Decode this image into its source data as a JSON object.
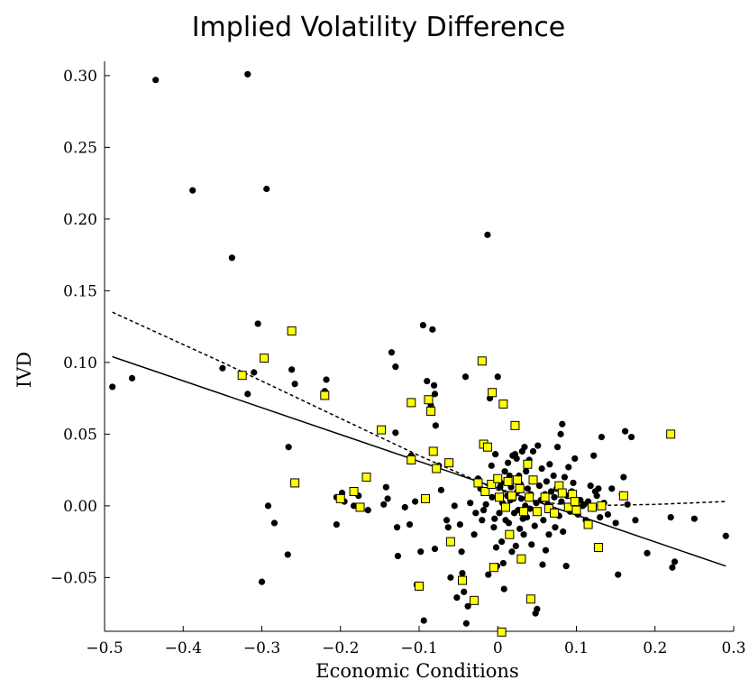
{
  "chart_data": {
    "type": "scatter",
    "title": "Implied Volatility Difference",
    "xlabel": "Economic Conditions",
    "ylabel": "IVD",
    "xlim": [
      -0.5,
      0.3
    ],
    "ylim": [
      -0.0875,
      0.31
    ],
    "x_ticks": [
      -0.5,
      -0.4,
      -0.3,
      -0.2,
      -0.1,
      0,
      0.1,
      0.2,
      0.3
    ],
    "x_tick_labels": [
      "−0.5",
      "−0.4",
      "−0.3",
      "−0.2",
      "−0.1",
      "0",
      "0.1",
      "0.2",
      "0.3"
    ],
    "y_ticks": [
      -0.05,
      0,
      0.05,
      0.1,
      0.15,
      0.2,
      0.25,
      0.3
    ],
    "y_tick_labels": [
      "−0.05",
      "0.00",
      "0.05",
      "0.10",
      "0.15",
      "0.20",
      "0.25",
      "0.30"
    ],
    "grid": false,
    "series": [
      {
        "marker": "circle",
        "color": "#000000",
        "points": [
          [
            -0.49,
            0.083
          ],
          [
            -0.465,
            0.089
          ],
          [
            -0.435,
            0.297
          ],
          [
            -0.388,
            0.22
          ],
          [
            -0.35,
            0.096
          ],
          [
            -0.338,
            0.173
          ],
          [
            -0.318,
            0.301
          ],
          [
            -0.318,
            0.078
          ],
          [
            -0.31,
            0.093
          ],
          [
            -0.305,
            0.127
          ],
          [
            -0.3,
            -0.053
          ],
          [
            -0.294,
            0.221
          ],
          [
            -0.292,
            0.0
          ],
          [
            -0.284,
            -0.012
          ],
          [
            -0.267,
            -0.034
          ],
          [
            -0.266,
            0.041
          ],
          [
            -0.262,
            0.095
          ],
          [
            -0.258,
            0.085
          ],
          [
            -0.218,
            0.088
          ],
          [
            -0.22,
            0.08
          ],
          [
            -0.205,
            -0.013
          ],
          [
            -0.205,
            0.006
          ],
          [
            -0.198,
            0.009
          ],
          [
            -0.195,
            0.003
          ],
          [
            -0.183,
            0.0
          ],
          [
            -0.177,
            0.007
          ],
          [
            -0.165,
            -0.003
          ],
          [
            -0.145,
            0.001
          ],
          [
            -0.142,
            0.013
          ],
          [
            -0.14,
            0.005
          ],
          [
            -0.135,
            0.107
          ],
          [
            -0.13,
            0.097
          ],
          [
            -0.13,
            0.051
          ],
          [
            -0.128,
            -0.015
          ],
          [
            -0.127,
            -0.035
          ],
          [
            -0.118,
            -0.001
          ],
          [
            -0.112,
            -0.013
          ],
          [
            -0.11,
            0.035
          ],
          [
            -0.105,
            0.003
          ],
          [
            -0.103,
            -0.055
          ],
          [
            -0.098,
            -0.032
          ],
          [
            -0.095,
            0.126
          ],
          [
            -0.094,
            -0.08
          ],
          [
            -0.09,
            0.087
          ],
          [
            -0.085,
            0.07
          ],
          [
            -0.083,
            0.123
          ],
          [
            -0.081,
            0.084
          ],
          [
            -0.08,
            0.078
          ],
          [
            -0.079,
            0.056
          ],
          [
            -0.08,
            -0.03
          ],
          [
            -0.075,
            0.028
          ],
          [
            -0.072,
            0.011
          ],
          [
            -0.065,
            -0.01
          ],
          [
            -0.063,
            -0.015
          ],
          [
            -0.06,
            -0.05
          ],
          [
            -0.055,
            0.0
          ],
          [
            -0.052,
            -0.064
          ],
          [
            -0.048,
            -0.013
          ],
          [
            -0.046,
            -0.032
          ],
          [
            -0.045,
            -0.047
          ],
          [
            -0.043,
            -0.06
          ],
          [
            -0.041,
            0.09
          ],
          [
            -0.04,
            -0.082
          ],
          [
            -0.038,
            -0.07
          ],
          [
            -0.035,
            0.002
          ],
          [
            -0.03,
            -0.02
          ],
          [
            -0.028,
            -0.005
          ],
          [
            -0.025,
            0.019
          ],
          [
            -0.022,
            0.012
          ],
          [
            -0.02,
            -0.01
          ],
          [
            -0.018,
            -0.003
          ],
          [
            -0.016,
            0.043
          ],
          [
            -0.015,
            0.001
          ],
          [
            -0.013,
            0.189
          ],
          [
            -0.012,
            -0.048
          ],
          [
            -0.01,
            0.075
          ],
          [
            -0.008,
            0.028
          ],
          [
            -0.007,
            0.006
          ],
          [
            -0.005,
            -0.015
          ],
          [
            -0.004,
            -0.009
          ],
          [
            -0.003,
            0.036
          ],
          [
            -0.002,
            -0.029
          ],
          [
            -0.001,
            -0.042
          ],
          [
            0.0,
            0.09
          ],
          [
            0.001,
            0.019
          ],
          [
            0.002,
            -0.005
          ],
          [
            0.003,
            0.013
          ],
          [
            0.004,
            0.016
          ],
          [
            0.005,
            -0.025
          ],
          [
            0.006,
            0.002
          ],
          [
            0.007,
            -0.04
          ],
          [
            0.008,
            -0.058
          ],
          [
            0.009,
            0.024
          ],
          [
            0.01,
            -0.01
          ],
          [
            0.012,
            0.007
          ],
          [
            0.013,
            0.03
          ],
          [
            0.014,
            -0.012
          ],
          [
            0.015,
            0.021
          ],
          [
            0.016,
            0.004
          ],
          [
            0.017,
            0.013
          ],
          [
            0.018,
            -0.032
          ],
          [
            0.019,
            0.035
          ],
          [
            0.02,
            0.005
          ],
          [
            0.021,
            -0.005
          ],
          [
            0.022,
            0.036
          ],
          [
            0.023,
            -0.028
          ],
          [
            0.024,
            0.033
          ],
          [
            0.025,
            0.01
          ],
          [
            0.026,
            -0.003
          ],
          [
            0.027,
            0.021
          ],
          [
            0.028,
            -0.016
          ],
          [
            0.029,
            0.015
          ],
          [
            0.03,
            0.005
          ],
          [
            0.031,
            0.038
          ],
          [
            0.032,
            -0.009
          ],
          [
            0.033,
            -0.02
          ],
          [
            0.034,
            0.041
          ],
          [
            0.035,
            0.0
          ],
          [
            0.036,
            0.024
          ],
          [
            0.037,
            -0.008
          ],
          [
            0.038,
            0.012
          ],
          [
            0.04,
            0.032
          ],
          [
            0.041,
            -0.002
          ],
          [
            0.042,
            0.008
          ],
          [
            0.043,
            -0.027
          ],
          [
            0.045,
            0.038
          ],
          [
            0.046,
            0.018
          ],
          [
            0.047,
            -0.014
          ],
          [
            0.048,
            -0.075
          ],
          [
            0.049,
            0.002
          ],
          [
            0.05,
            -0.072
          ],
          [
            0.051,
            0.042
          ],
          [
            0.053,
            0.014
          ],
          [
            0.055,
            0.004
          ],
          [
            0.056,
            0.026
          ],
          [
            0.057,
            -0.041
          ],
          [
            0.058,
            -0.01
          ],
          [
            0.06,
            0.008
          ],
          [
            0.061,
            -0.031
          ],
          [
            0.062,
            0.017
          ],
          [
            0.064,
            0.001
          ],
          [
            0.065,
            -0.02
          ],
          [
            0.066,
            0.029
          ],
          [
            0.068,
            0.01
          ],
          [
            0.07,
            -0.004
          ],
          [
            0.071,
            0.021
          ],
          [
            0.072,
            0.006
          ],
          [
            0.073,
            -0.015
          ],
          [
            0.075,
            0.012
          ],
          [
            0.076,
            0.041
          ],
          [
            0.078,
            -0.007
          ],
          [
            0.08,
            0.05
          ],
          [
            0.081,
            0.003
          ],
          [
            0.082,
            0.057
          ],
          [
            0.083,
            -0.018
          ],
          [
            0.085,
            0.02
          ],
          [
            0.087,
            -0.042
          ],
          [
            0.088,
            0.007
          ],
          [
            0.09,
            0.027
          ],
          [
            0.092,
            -0.004
          ],
          [
            0.094,
            0.01
          ],
          [
            0.096,
            0.016
          ],
          [
            0.098,
            0.033
          ],
          [
            0.1,
            0.002
          ],
          [
            0.102,
            -0.006
          ],
          [
            0.105,
            0.004
          ],
          [
            0.108,
            0.0
          ],
          [
            0.11,
            0.001
          ],
          [
            0.112,
            -0.01
          ],
          [
            0.115,
            0.003
          ],
          [
            0.118,
            0.014
          ],
          [
            0.12,
            -0.002
          ],
          [
            0.122,
            0.035
          ],
          [
            0.124,
            0.01
          ],
          [
            0.126,
            0.007
          ],
          [
            0.128,
            0.012
          ],
          [
            0.13,
            -0.008
          ],
          [
            0.132,
            0.048
          ],
          [
            0.135,
            0.002
          ],
          [
            0.14,
            -0.006
          ],
          [
            0.145,
            0.012
          ],
          [
            0.15,
            -0.012
          ],
          [
            0.153,
            -0.048
          ],
          [
            0.158,
            0.008
          ],
          [
            0.16,
            0.02
          ],
          [
            0.162,
            0.052
          ],
          [
            0.165,
            0.001
          ],
          [
            0.17,
            0.048
          ],
          [
            0.175,
            -0.01
          ],
          [
            0.19,
            -0.033
          ],
          [
            0.22,
            -0.008
          ],
          [
            0.222,
            -0.043
          ],
          [
            0.225,
            -0.039
          ],
          [
            0.25,
            -0.009
          ],
          [
            0.29,
            -0.021
          ]
        ]
      },
      {
        "marker": "square",
        "color": "#ffff00",
        "points": [
          [
            -0.325,
            0.091
          ],
          [
            -0.297,
            0.103
          ],
          [
            -0.262,
            0.122
          ],
          [
            -0.258,
            0.016
          ],
          [
            -0.22,
            0.077
          ],
          [
            -0.2,
            0.005
          ],
          [
            -0.183,
            0.01
          ],
          [
            -0.175,
            -0.001
          ],
          [
            -0.167,
            0.02
          ],
          [
            -0.148,
            0.053
          ],
          [
            -0.11,
            0.032
          ],
          [
            -0.11,
            0.072
          ],
          [
            -0.1,
            -0.056
          ],
          [
            -0.092,
            0.005
          ],
          [
            -0.088,
            0.074
          ],
          [
            -0.085,
            0.066
          ],
          [
            -0.082,
            0.038
          ],
          [
            -0.078,
            0.026
          ],
          [
            -0.062,
            0.03
          ],
          [
            -0.06,
            -0.025
          ],
          [
            -0.045,
            -0.052
          ],
          [
            -0.03,
            -0.066
          ],
          [
            -0.025,
            0.016
          ],
          [
            -0.02,
            0.101
          ],
          [
            -0.018,
            0.043
          ],
          [
            -0.016,
            0.01
          ],
          [
            -0.013,
            0.041
          ],
          [
            -0.008,
            0.015
          ],
          [
            -0.007,
            0.079
          ],
          [
            -0.005,
            -0.043
          ],
          [
            0.0,
            0.019
          ],
          [
            0.002,
            0.006
          ],
          [
            0.005,
            -0.088
          ],
          [
            0.007,
            0.071
          ],
          [
            0.01,
            -0.001
          ],
          [
            0.013,
            0.017
          ],
          [
            0.015,
            -0.02
          ],
          [
            0.018,
            0.007
          ],
          [
            0.022,
            0.056
          ],
          [
            0.025,
            0.018
          ],
          [
            0.028,
            0.012
          ],
          [
            0.03,
            -0.037
          ],
          [
            0.033,
            -0.004
          ],
          [
            0.038,
            0.029
          ],
          [
            0.04,
            0.006
          ],
          [
            0.042,
            -0.065
          ],
          [
            0.045,
            0.018
          ],
          [
            0.05,
            -0.004
          ],
          [
            0.06,
            0.006
          ],
          [
            0.065,
            -0.002
          ],
          [
            0.072,
            -0.005
          ],
          [
            0.078,
            0.014
          ],
          [
            0.082,
            0.009
          ],
          [
            0.09,
            -0.001
          ],
          [
            0.095,
            0.008
          ],
          [
            0.098,
            0.003
          ],
          [
            0.1,
            -0.003
          ],
          [
            0.115,
            -0.013
          ],
          [
            0.12,
            -0.001
          ],
          [
            0.128,
            -0.029
          ],
          [
            0.132,
            0.0
          ],
          [
            0.16,
            0.007
          ],
          [
            0.22,
            0.05
          ]
        ]
      }
    ],
    "lines": [
      {
        "style": "solid",
        "x": [
          -0.49,
          0.29
        ],
        "y": [
          0.104,
          -0.042
        ]
      },
      {
        "style": "dashed",
        "x": [
          -0.49,
          -0.35,
          -0.2,
          -0.1,
          0.0,
          0.05,
          0.1,
          0.2,
          0.29
        ],
        "y": [
          0.135,
          0.1,
          0.061,
          0.035,
          0.011,
          0.003,
          0.0,
          0.001,
          0.003
        ]
      }
    ]
  }
}
